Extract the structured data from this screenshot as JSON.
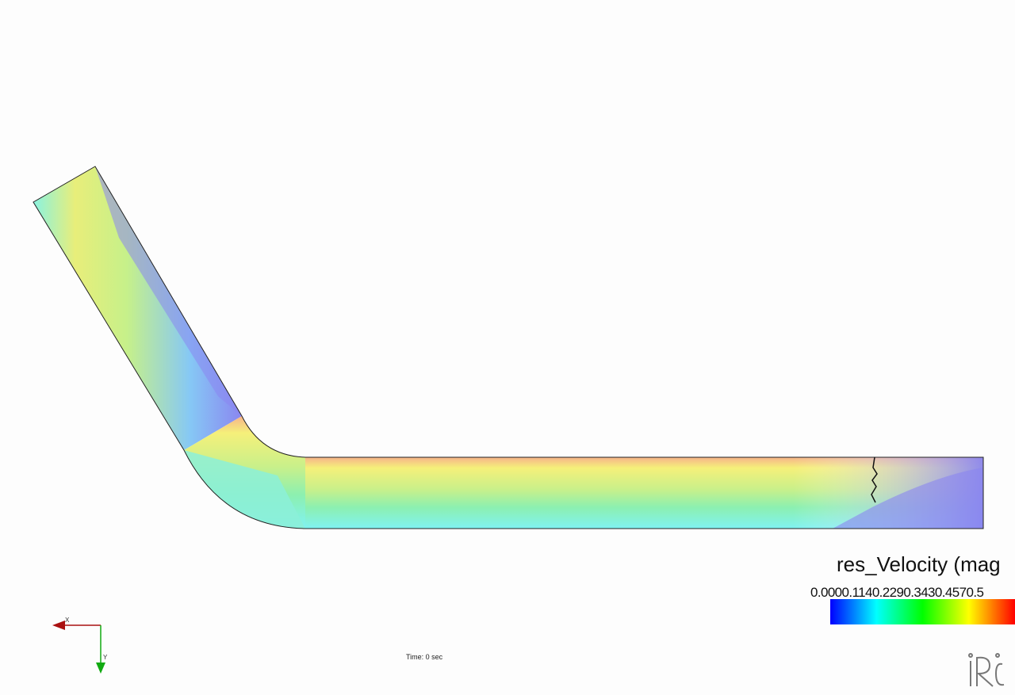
{
  "legend": {
    "title": "res_Velocity (mag",
    "ticks": [
      "0.000",
      "0.114",
      "0.229",
      "0.343",
      "0.457",
      "0.5"
    ],
    "colors": [
      "#0000ff",
      "#00ffff",
      "#00ff00",
      "#ffff00",
      "#ff0000"
    ]
  },
  "status": {
    "time_label": "Time: 0 sec"
  },
  "axes": {
    "x_label": "X",
    "y_label": "Y",
    "x_color": "#aa1111",
    "y_color": "#11aa11"
  },
  "logo": {
    "icon": "iric-logo-icon"
  }
}
